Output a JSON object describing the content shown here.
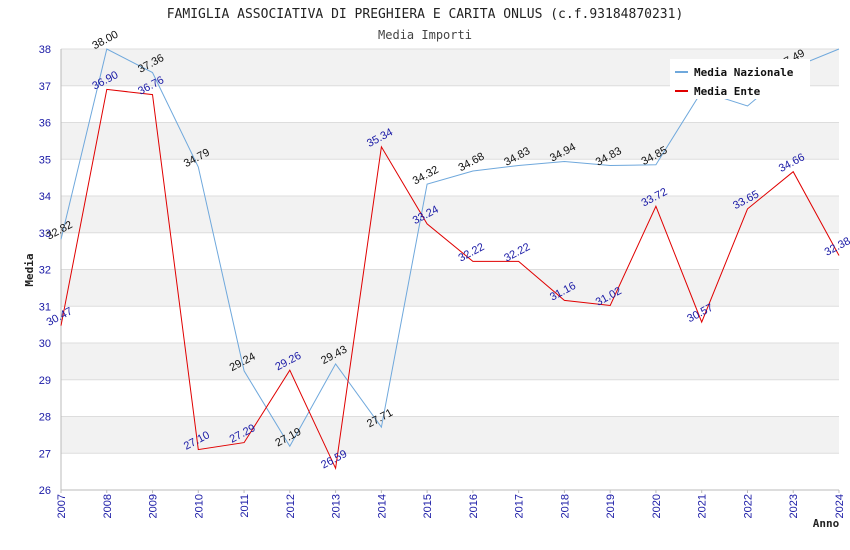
{
  "chart_data": {
    "type": "line",
    "title": "FAMIGLIA ASSOCIATIVA DI PREGHIERA E CARITA ONLUS (c.f.93184870231)",
    "subtitle": "Media Importi",
    "xlabel": "Anno",
    "ylabel": "Media",
    "ylim": [
      26,
      38
    ],
    "yticks": [
      "26",
      "27",
      "28",
      "29",
      "30",
      "31",
      "32",
      "33",
      "34",
      "35",
      "36",
      "37",
      "38"
    ],
    "categories": [
      "2007",
      "2008",
      "2009",
      "2010",
      "2011",
      "2012",
      "2013",
      "2014",
      "2015",
      "2016",
      "2017",
      "2018",
      "2019",
      "2020",
      "2021",
      "2022",
      "2023",
      "2024"
    ],
    "legend_position": "top-right",
    "grid": true,
    "series": [
      {
        "name": "Media Nazionale",
        "color": "#6fa8dc",
        "label_color": "#111111",
        "values": [
          32.82,
          38.0,
          37.36,
          34.79,
          29.24,
          27.19,
          29.43,
          27.71,
          34.32,
          34.68,
          34.83,
          34.94,
          34.83,
          34.85,
          36.85,
          36.45,
          37.49,
          38.0
        ],
        "labels": [
          "32.82",
          "38.00",
          "37.36",
          "34.79",
          "29.24",
          "27.19",
          "29.43",
          "27.71",
          "34.32",
          "34.68",
          "34.83",
          "34.94",
          "34.83",
          "34.85",
          "",
          "",
          "37.49",
          ""
        ]
      },
      {
        "name": "Media Ente",
        "color": "#e00000",
        "label_color": "#1a1aa6",
        "values": [
          30.47,
          36.9,
          36.76,
          27.1,
          27.29,
          29.26,
          26.59,
          35.34,
          33.24,
          32.22,
          32.22,
          31.16,
          31.02,
          33.72,
          30.57,
          33.65,
          34.66,
          32.38
        ],
        "labels": [
          "30.47",
          "36.90",
          "36.76",
          "27.10",
          "27.29",
          "29.26",
          "26.59",
          "35.34",
          "33.24",
          "32.22",
          "32.22",
          "31.16",
          "31.02",
          "33.72",
          "30.57",
          "33.65",
          "34.66",
          "32.38"
        ]
      }
    ]
  }
}
